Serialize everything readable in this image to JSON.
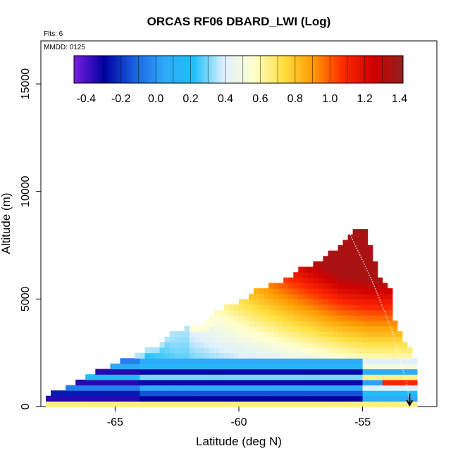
{
  "chart_data": {
    "type": "heatmap",
    "title": "ORCAS RF06 DBARD_LWI (Log)",
    "flights_note": "Flts: 6",
    "date_note": "MMDD: 0125",
    "xlabel": "Latitude (deg N)",
    "ylabel": "Altitude (m)",
    "xlim": [
      -68.0,
      -52.0
    ],
    "ylim": [
      0,
      17000
    ],
    "x_ticks": [
      -65,
      -60,
      -55
    ],
    "x_tick_labels": [
      "-65",
      "-60",
      "-55"
    ],
    "y_ticks": [
      0,
      5000,
      10000,
      15000
    ],
    "y_tick_labels": [
      "0",
      "5000",
      "10000",
      "15000"
    ],
    "colorbar": {
      "range": [
        -0.47,
        1.42
      ],
      "ticks": [
        -0.4,
        -0.2,
        0.0,
        0.2,
        0.4,
        0.6,
        0.8,
        1.0,
        1.2,
        1.4
      ],
      "tick_labels": [
        "-0.4",
        "-0.2",
        "0.0",
        "0.2",
        "0.4",
        "0.6",
        "0.8",
        "1.0",
        "1.2",
        "1.4"
      ],
      "colors": [
        "#7a1fe0",
        "#0000a0",
        "#1a5fe0",
        "#2fa8f8",
        "#1ec0f8",
        "#dff0ff",
        "#ffffd0",
        "#ffe040",
        "#ff9a00",
        "#ff2a00",
        "#d00000",
        "#902020"
      ]
    },
    "grid": {
      "lat_start": -67.8,
      "lat_step": 0.2,
      "alt_step": 250,
      "alt_max": 8250,
      "column_top_altitude": [
        [
          -67.8,
          500
        ],
        [
          -67.0,
          750
        ],
        [
          -66.2,
          1250
        ],
        [
          -65.8,
          1500
        ],
        [
          -65.2,
          1750
        ],
        [
          -64.8,
          2000
        ],
        [
          -64.2,
          2250
        ],
        [
          -63.8,
          2500
        ],
        [
          -63.2,
          2750
        ],
        [
          -62.8,
          3250
        ],
        [
          -62.2,
          3500
        ],
        [
          -61.4,
          3750
        ],
        [
          -61.0,
          4250
        ],
        [
          -60.6,
          4500
        ],
        [
          -60.0,
          4750
        ],
        [
          -59.4,
          5250
        ],
        [
          -58.8,
          5500
        ],
        [
          -58.2,
          5750
        ],
        [
          -57.6,
          6250
        ],
        [
          -57.0,
          6500
        ],
        [
          -56.4,
          7000
        ],
        [
          -55.8,
          7500
        ],
        [
          -55.4,
          8000
        ],
        [
          -55.0,
          8250
        ],
        [
          -54.4,
          6000
        ],
        [
          -54.0,
          5500
        ],
        [
          -53.8,
          4000
        ],
        [
          -53.4,
          3000
        ],
        [
          -53.0,
          2250
        ],
        [
          -52.8,
          0
        ]
      ],
      "value_model": {
        "surface_band_value": 0.65,
        "low_level_min": -0.35,
        "upper_max": 1.35,
        "peak_latitude": -54.8,
        "peak_altitude": 6000
      }
    },
    "flight_track": {
      "description_points": [
        [
          -55.5,
          8000
        ],
        [
          -54.6,
          5800
        ],
        [
          -53.8,
          3500
        ],
        [
          -53.2,
          1000
        ],
        [
          -53.1,
          100
        ]
      ],
      "arrow_at_latitude": -53.1
    }
  }
}
